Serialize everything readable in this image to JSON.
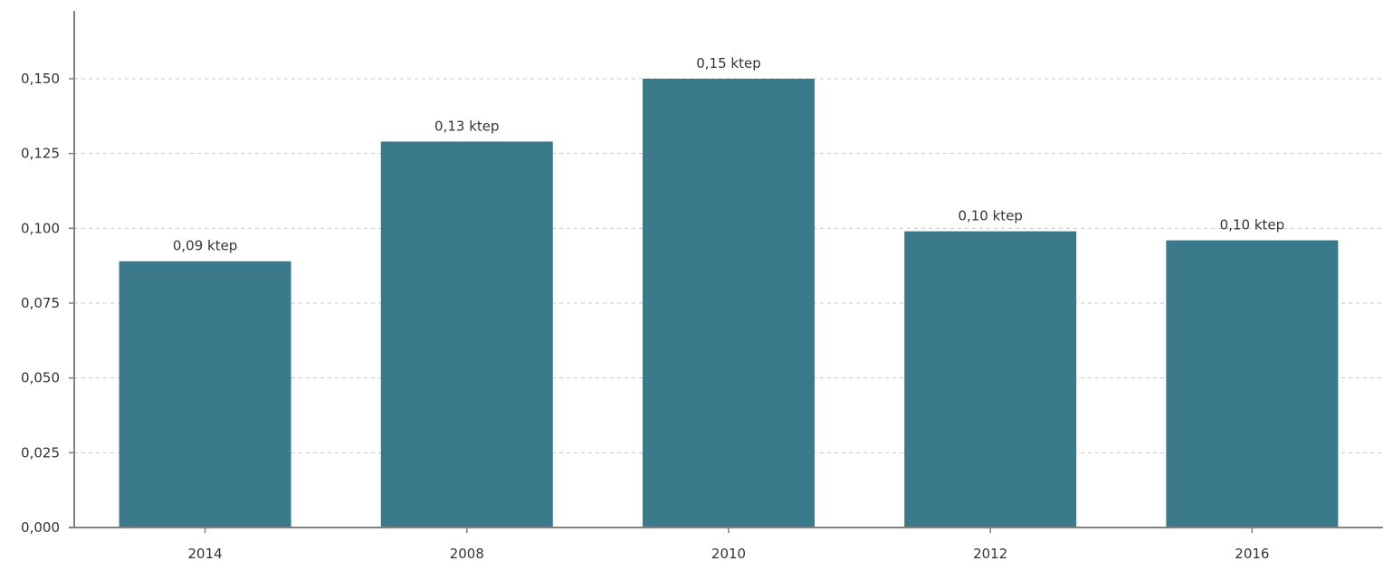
{
  "colors": {
    "bar": "#3b7a8b",
    "grid": "#c8c8c8",
    "axis": "#808080",
    "text": "#333333"
  },
  "chart_data": {
    "type": "bar",
    "title": "",
    "xlabel": "",
    "ylabel": "",
    "categories": [
      "2014",
      "2008",
      "2010",
      "2012",
      "2016"
    ],
    "values": [
      0.089,
      0.129,
      0.15,
      0.099,
      0.096
    ],
    "data_labels": [
      "0,09 ktep",
      "0,13 ktep",
      "0,15 ktep",
      "0,10 ktep",
      "0,10 ktep"
    ],
    "ylim": [
      0,
      0.15
    ],
    "yticks": [
      0,
      0.025,
      0.05,
      0.075,
      0.1,
      0.125,
      0.15
    ],
    "ytick_labels": [
      "0,000",
      "0,025",
      "0,050",
      "0,075",
      "0,100",
      "0,125",
      "0,150"
    ],
    "grid": true,
    "grid_style": "dashed",
    "legend": "none"
  }
}
